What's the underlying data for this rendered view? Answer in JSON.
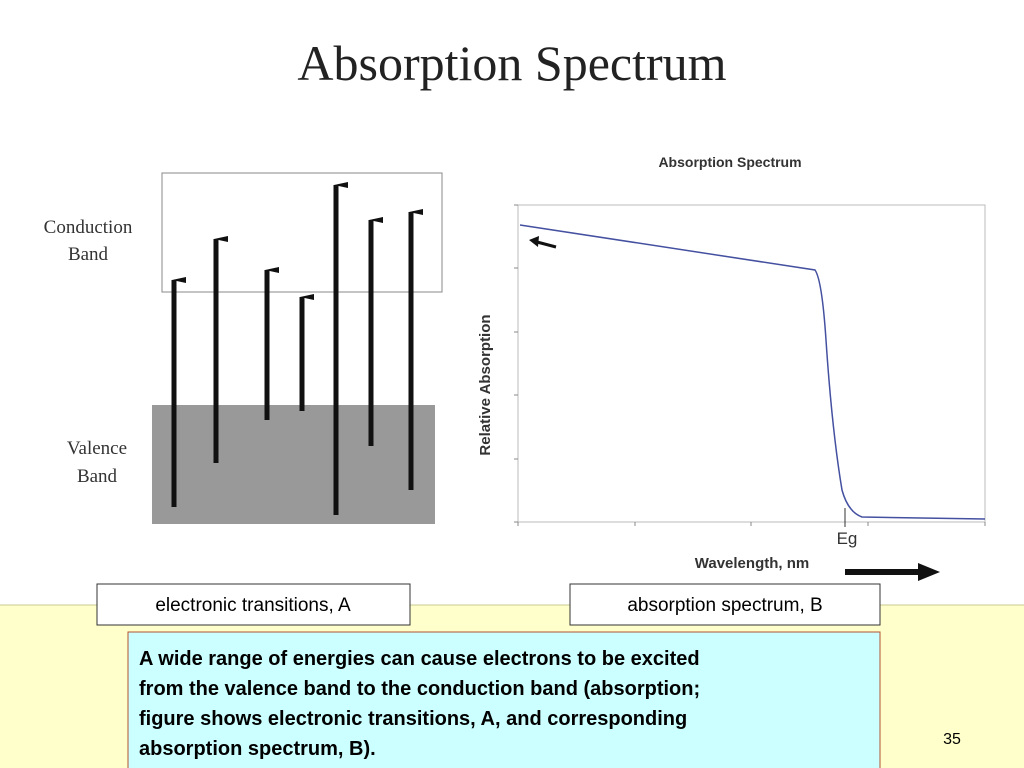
{
  "title": "Absorption Spectrum",
  "diagram": {
    "conduction_label": [
      "Conduction",
      "Band"
    ],
    "valence_label": [
      "Valence",
      "Band"
    ]
  },
  "spectrum": {
    "title": "Absorption Spectrum",
    "y_label": "Relative Absorption",
    "x_label": "Wavelength, nm",
    "marker": "Eg"
  },
  "captions": [
    "electronic transitions, A",
    "absorption spectrum, B"
  ],
  "paragraph": [
    "A wide range of energies can cause electrons to be excited",
    "from the valence band to the conduction band (absorption;",
    "figure shows electronic transitions, A, and corresponding",
    "absorption spectrum, B)."
  ],
  "page_number": "35"
}
